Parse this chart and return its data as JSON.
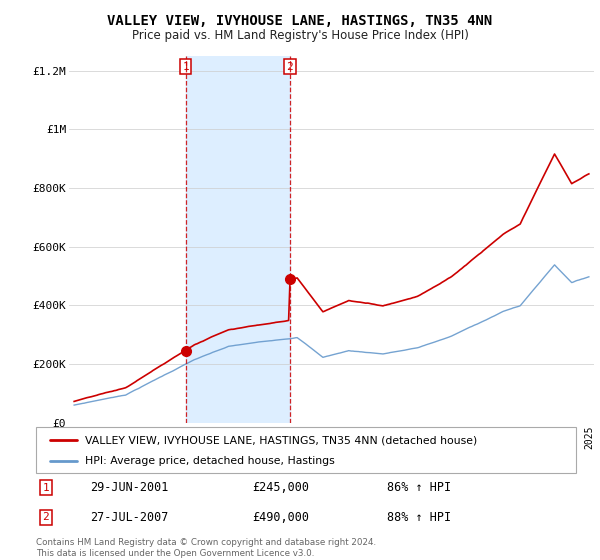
{
  "title": "VALLEY VIEW, IVYHOUSE LANE, HASTINGS, TN35 4NN",
  "subtitle": "Price paid vs. HM Land Registry's House Price Index (HPI)",
  "legend_line1": "VALLEY VIEW, IVYHOUSE LANE, HASTINGS, TN35 4NN (detached house)",
  "legend_line2": "HPI: Average price, detached house, Hastings",
  "sale1_label": "1",
  "sale1_date": "29-JUN-2001",
  "sale1_price": "£245,000",
  "sale1_pct": "86% ↑ HPI",
  "sale2_label": "2",
  "sale2_date": "27-JUL-2007",
  "sale2_price": "£490,000",
  "sale2_pct": "88% ↑ HPI",
  "sale1_x": 2001.5,
  "sale1_y": 245000,
  "sale2_x": 2007.58,
  "sale2_y": 490000,
  "footnote": "Contains HM Land Registry data © Crown copyright and database right 2024.\nThis data is licensed under the Open Government Licence v3.0.",
  "red_color": "#cc0000",
  "blue_color": "#6699cc",
  "shaded_color": "#ddeeff",
  "background_color": "#ffffff",
  "ylim": [
    0,
    1250000
  ],
  "yticks": [
    0,
    200000,
    400000,
    600000,
    800000,
    1000000,
    1200000
  ],
  "ytick_labels": [
    "£0",
    "£200K",
    "£400K",
    "£600K",
    "£800K",
    "£1M",
    "£1.2M"
  ],
  "xmin": 1994.7,
  "xmax": 2025.3
}
